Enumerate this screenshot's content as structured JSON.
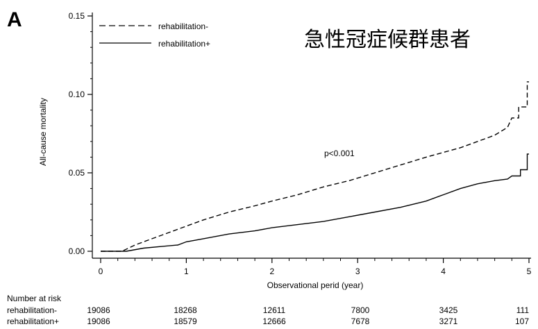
{
  "panel_label": "A",
  "title": "急性冠症候群患者",
  "chart_data": {
    "type": "line",
    "xlabel": "Observational perid (year)",
    "ylabel": "All-cause mortality",
    "xlim": [
      0,
      5.05
    ],
    "ylim": [
      0,
      0.15
    ],
    "xticks": [
      0,
      1,
      2,
      3,
      4,
      5
    ],
    "yticks": [
      0.0,
      0.05,
      0.1,
      0.15
    ],
    "ytick_labels": [
      "0.00",
      "0.05",
      "0.10",
      "0.15"
    ],
    "grid": false,
    "legend_position": "top-left",
    "annotation": "p<0.001",
    "series": [
      {
        "name": "rehabilitation-",
        "style": "dashed",
        "points": [
          [
            0,
            0
          ],
          [
            0.25,
            0
          ],
          [
            0.4,
            0.004
          ],
          [
            0.6,
            0.008
          ],
          [
            0.8,
            0.012
          ],
          [
            1,
            0.016
          ],
          [
            1.2,
            0.02
          ],
          [
            1.5,
            0.025
          ],
          [
            1.8,
            0.029
          ],
          [
            2,
            0.032
          ],
          [
            2.3,
            0.036
          ],
          [
            2.6,
            0.041
          ],
          [
            2.9,
            0.045
          ],
          [
            3.2,
            0.05
          ],
          [
            3.5,
            0.055
          ],
          [
            3.8,
            0.06
          ],
          [
            4,
            0.063
          ],
          [
            4.2,
            0.066
          ],
          [
            4.4,
            0.07
          ],
          [
            4.6,
            0.074
          ],
          [
            4.75,
            0.079
          ],
          [
            4.8,
            0.085
          ],
          [
            4.88,
            0.085
          ],
          [
            4.88,
            0.092
          ],
          [
            4.98,
            0.092
          ],
          [
            4.98,
            0.108
          ],
          [
            5.0,
            0.108
          ]
        ]
      },
      {
        "name": "rehabilitation+",
        "style": "solid",
        "points": [
          [
            0,
            0
          ],
          [
            0.3,
            0
          ],
          [
            0.5,
            0.002
          ],
          [
            0.7,
            0.003
          ],
          [
            0.9,
            0.004
          ],
          [
            1,
            0.006
          ],
          [
            1.2,
            0.008
          ],
          [
            1.5,
            0.011
          ],
          [
            1.8,
            0.013
          ],
          [
            2,
            0.015
          ],
          [
            2.3,
            0.017
          ],
          [
            2.6,
            0.019
          ],
          [
            2.9,
            0.022
          ],
          [
            3.2,
            0.025
          ],
          [
            3.5,
            0.028
          ],
          [
            3.8,
            0.032
          ],
          [
            4,
            0.036
          ],
          [
            4.2,
            0.04
          ],
          [
            4.4,
            0.043
          ],
          [
            4.6,
            0.045
          ],
          [
            4.75,
            0.046
          ],
          [
            4.8,
            0.048
          ],
          [
            4.9,
            0.048
          ],
          [
            4.9,
            0.052
          ],
          [
            4.98,
            0.052
          ],
          [
            4.98,
            0.062
          ],
          [
            5.0,
            0.062
          ]
        ]
      }
    ]
  },
  "risk_table": {
    "header": "Number at risk",
    "rows": [
      {
        "label": "rehabilitation-",
        "values": [
          "19086",
          "18268",
          "12611",
          "7800",
          "3425",
          "111"
        ]
      },
      {
        "label": "rehabilitation+",
        "values": [
          "19086",
          "18579",
          "12666",
          "7678",
          "3271",
          "107"
        ]
      }
    ]
  }
}
